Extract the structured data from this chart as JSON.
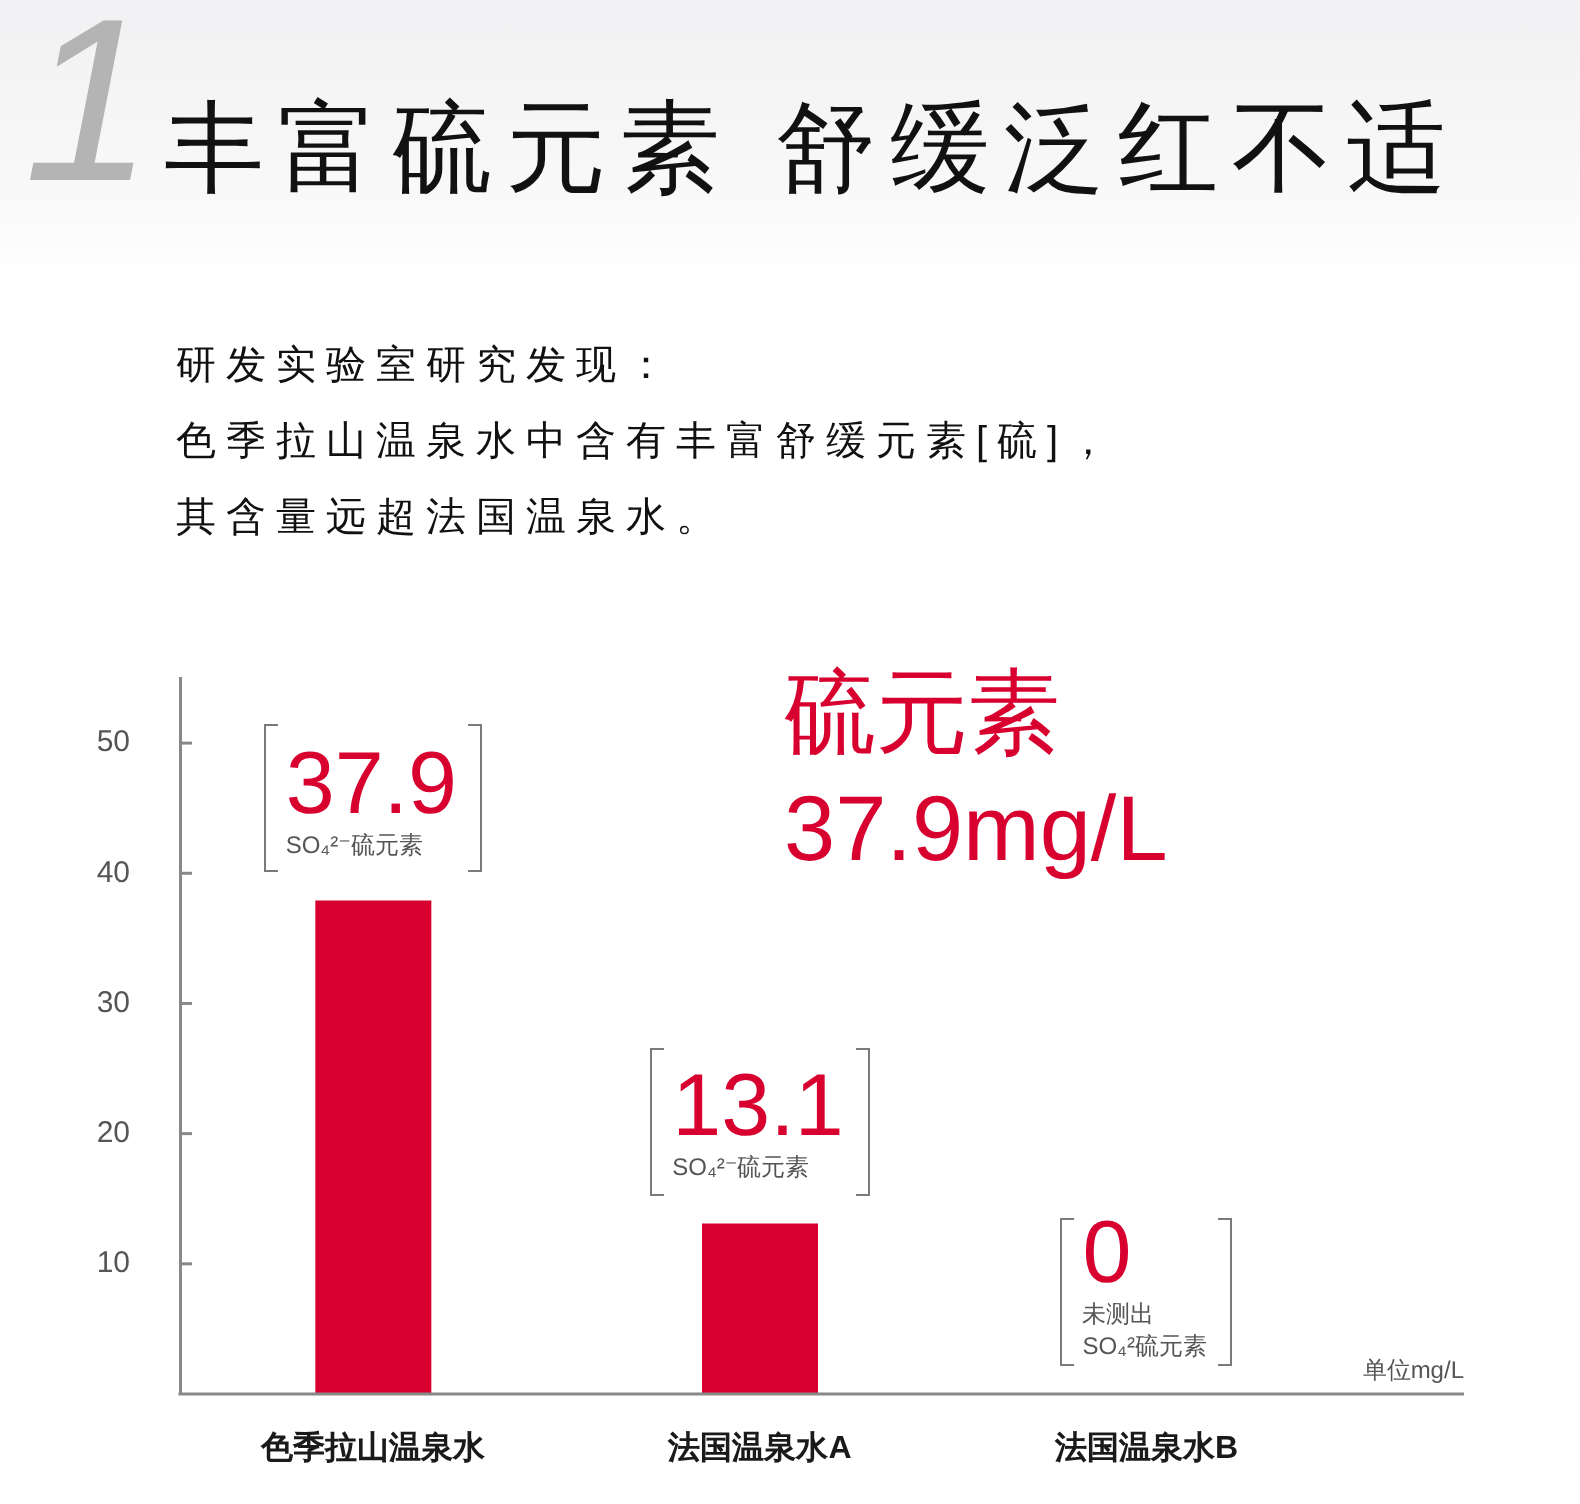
{
  "chart_data": {
    "type": "bar",
    "title": "丰富硫元素 舒缓泛红不适",
    "subtitle": "研发实验室研究发现：",
    "ylabel": "单位mg/L",
    "categories": [
      "色季拉山温泉水",
      "法国温泉水A",
      "法国温泉水B"
    ],
    "values": [
      37.9,
      13.1,
      0
    ],
    "color": "#d7002f",
    "ylim": [
      0,
      55
    ],
    "yticks": [
      10,
      20,
      30,
      40,
      50
    ],
    "data_labels": true,
    "annotations": [
      "1",
      "色季拉山温泉水中含有丰富舒缓元素[硫]，其含量远超法国温泉水。",
      "硫元素\n37.9mg/L",
      {
        "text": "SO₄²⁻硫元素",
        "x": "色季拉山温泉水",
        "y": 37.9
      },
      {
        "text": "SO₄²⁻硫元素",
        "x": "法国温泉水A",
        "y": 13.1
      },
      {
        "text": "未测出",
        "x": "法国温泉水B",
        "y": 0
      },
      {
        "text": "SO₄²硫元素",
        "x": "法国温泉水B",
        "y": 0
      }
    ]
  }
}
